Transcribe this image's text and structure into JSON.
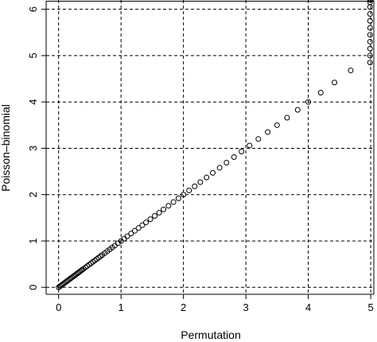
{
  "chart_data": {
    "type": "scatter",
    "title": "",
    "xlabel": "Permutation",
    "ylabel": "Poisson–binomial",
    "xlim": [
      -0.2,
      5.05
    ],
    "ylim": [
      -0.15,
      6.2
    ],
    "xticks": [
      "0",
      "1",
      "2",
      "3",
      "4",
      "5"
    ],
    "yticks": [
      "0",
      "1",
      "2",
      "3",
      "4",
      "5",
      "6"
    ],
    "grid": true,
    "series": [
      {
        "x": [
          0.0,
          0.02,
          0.04,
          0.06,
          0.08,
          0.1,
          0.12,
          0.14,
          0.16,
          0.18,
          0.2,
          0.22,
          0.24,
          0.26,
          0.28,
          0.3,
          0.32,
          0.34,
          0.36,
          0.38,
          0.4,
          0.43,
          0.46,
          0.49,
          0.52,
          0.55,
          0.58,
          0.61,
          0.64,
          0.67,
          0.7,
          0.74,
          0.78,
          0.82,
          0.86,
          0.9,
          0.95,
          1.0,
          1.05,
          1.1,
          1.16,
          1.22,
          1.28,
          1.34,
          1.4,
          1.47,
          1.54,
          1.61,
          1.68,
          1.76,
          1.84,
          1.92,
          2.0,
          2.09,
          2.18,
          2.27,
          2.37,
          2.47,
          2.58,
          2.69,
          2.81,
          2.93,
          3.06,
          3.2,
          3.35,
          3.5,
          3.66,
          3.83,
          4.0,
          4.2,
          4.42,
          4.68,
          4.99,
          4.99,
          4.99,
          4.99,
          4.99,
          4.99,
          4.99,
          4.99,
          4.99,
          4.99,
          4.99
        ],
        "y": [
          0.0,
          0.02,
          0.04,
          0.06,
          0.08,
          0.1,
          0.12,
          0.14,
          0.16,
          0.18,
          0.2,
          0.22,
          0.24,
          0.26,
          0.28,
          0.3,
          0.32,
          0.34,
          0.36,
          0.38,
          0.4,
          0.43,
          0.46,
          0.49,
          0.52,
          0.55,
          0.58,
          0.61,
          0.64,
          0.67,
          0.7,
          0.74,
          0.78,
          0.82,
          0.86,
          0.9,
          0.95,
          1.0,
          1.05,
          1.1,
          1.16,
          1.22,
          1.28,
          1.34,
          1.4,
          1.47,
          1.54,
          1.61,
          1.68,
          1.76,
          1.84,
          1.92,
          2.0,
          2.09,
          2.18,
          2.27,
          2.37,
          2.47,
          2.58,
          2.69,
          2.81,
          2.93,
          3.06,
          3.2,
          3.35,
          3.5,
          3.66,
          3.83,
          4.0,
          4.2,
          4.42,
          4.68,
          4.85,
          5.0,
          5.15,
          5.3,
          5.45,
          5.6,
          5.75,
          5.9,
          6.05,
          6.15,
          6.2
        ]
      }
    ]
  }
}
